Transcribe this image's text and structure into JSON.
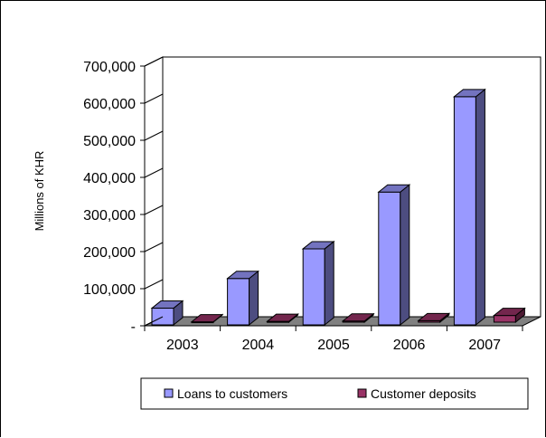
{
  "chart_data": {
    "type": "bar",
    "categories": [
      "2003",
      "2004",
      "2005",
      "2006",
      "2007"
    ],
    "series": [
      {
        "name": "Loans to customers",
        "values": [
          45000,
          125000,
          205000,
          358000,
          615000
        ],
        "color": "#9999ff"
      },
      {
        "name": "Customer deposits",
        "values": [
          1000,
          2000,
          3000,
          4000,
          18000
        ],
        "color": "#993366"
      }
    ],
    "ylabel": "Millions of KHR",
    "yticks": [
      "-",
      "100,000",
      "200,000",
      "300,000",
      "400,000",
      "500,000",
      "600,000",
      "700,000"
    ],
    "ylim": [
      0,
      700000
    ],
    "legend_position": "bottom",
    "grid": false,
    "style": "3d"
  }
}
